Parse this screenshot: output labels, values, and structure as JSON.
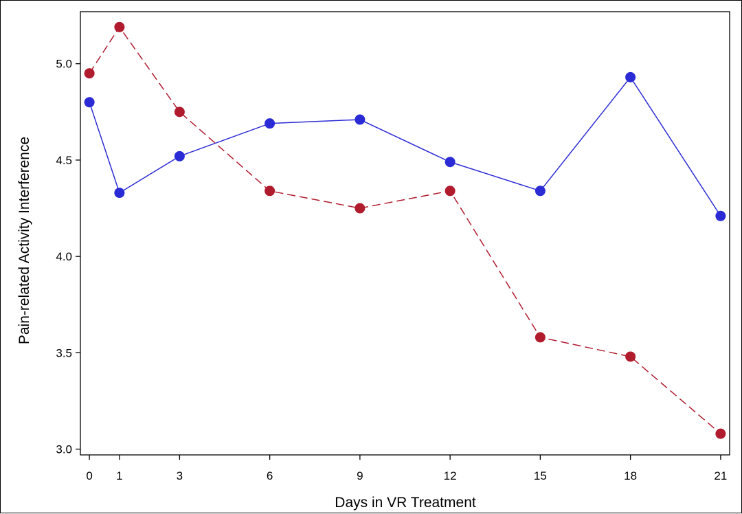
{
  "chart_data": {
    "type": "line",
    "title": "",
    "xlabel": "Days in VR Treatment",
    "ylabel": "Pain-related Activity Interference",
    "x": [
      0,
      1,
      3,
      6,
      9,
      12,
      15,
      18,
      21
    ],
    "xlim": [
      -0.3,
      21.3
    ],
    "ylim": [
      2.97,
      5.27
    ],
    "x_ticks": [
      "0",
      "1",
      "3",
      "6",
      "9",
      "12",
      "15",
      "18",
      "21"
    ],
    "y_ticks": [
      "3.0",
      "3.5",
      "4.0",
      "4.5",
      "5.0"
    ],
    "grid": false,
    "legend": "none",
    "series": [
      {
        "values": [
          4.8,
          4.33,
          4.52,
          4.69,
          4.71,
          4.49,
          4.34,
          4.93,
          4.21
        ],
        "color": "#2b2bd6",
        "line_style": "solid",
        "marker": "circle"
      },
      {
        "values": [
          4.95,
          5.19,
          4.75,
          4.34,
          4.25,
          4.34,
          3.58,
          3.48,
          3.08
        ],
        "color": "#b01c2e",
        "line_style": "dashed",
        "marker": "circle"
      }
    ]
  }
}
